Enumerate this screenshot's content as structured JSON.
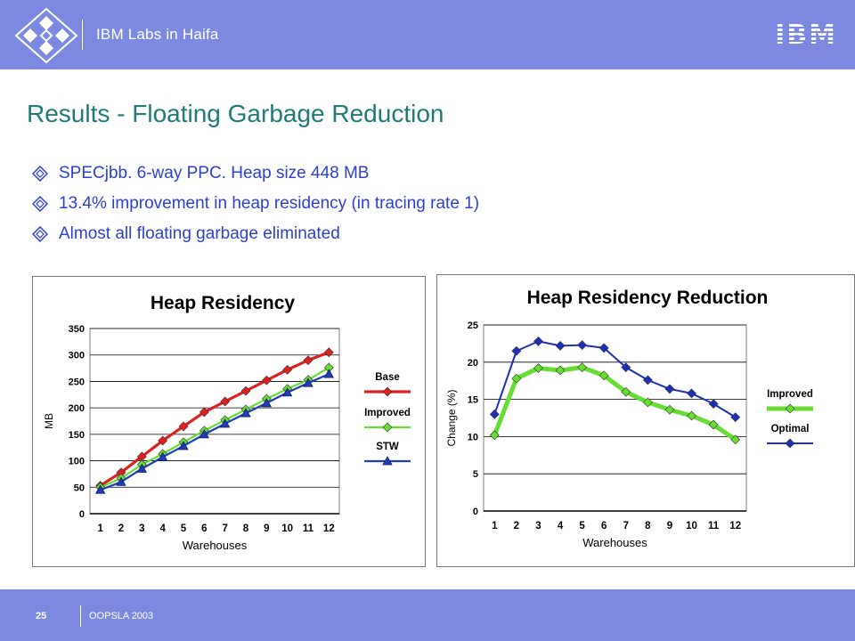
{
  "header": {
    "lab_name": "IBM Labs in Haifa",
    "brand": "IBM",
    "bar_color": "#7b8ae0"
  },
  "slide": {
    "title": "Results - Floating Garbage Reduction",
    "title_color": "#1f7a78",
    "bullets": [
      "SPECjbb. 6-way PPC. Heap size 448 MB",
      "13.4% improvement in heap residency (in tracing rate 1)",
      "Almost all floating garbage eliminated"
    ],
    "bullet_icon": "diamond-bullet-icon",
    "bullet_color": "#2d3fcf"
  },
  "footer": {
    "page_number": "25",
    "conference": "OOPSLA 2003"
  },
  "chart_data": [
    {
      "type": "line",
      "title": "Heap Residency",
      "xlabel": "Warehouses",
      "ylabel": "MB",
      "categories": [
        "1",
        "2",
        "3",
        "4",
        "5",
        "6",
        "7",
        "8",
        "9",
        "10",
        "11",
        "12"
      ],
      "ylim": [
        0,
        350
      ],
      "yticks": [
        "0",
        "50",
        "100",
        "150",
        "200",
        "250",
        "300",
        "350"
      ],
      "grid": true,
      "legend_position": "right",
      "series": [
        {
          "name": "Base",
          "color": "#e02020",
          "marker": "diamond",
          "values": [
            53,
            78,
            108,
            138,
            165,
            192,
            212,
            232,
            252,
            272,
            290,
            305
          ]
        },
        {
          "name": "Improved",
          "color": "#66dd33",
          "marker": "diamond",
          "values": [
            50,
            67,
            93,
            113,
            135,
            157,
            177,
            197,
            217,
            236,
            253,
            276
          ]
        },
        {
          "name": "STW",
          "color": "#1e3db8",
          "marker": "triangle",
          "values": [
            45,
            60,
            85,
            107,
            128,
            150,
            170,
            190,
            209,
            229,
            247,
            264
          ]
        }
      ]
    },
    {
      "type": "line",
      "title": "Heap Residency Reduction",
      "xlabel": "Warehouses",
      "ylabel": "Change (%)",
      "categories": [
        "1",
        "2",
        "3",
        "4",
        "5",
        "6",
        "7",
        "8",
        "9",
        "10",
        "11",
        "12"
      ],
      "ylim": [
        0,
        25
      ],
      "yticks": [
        "0",
        "5",
        "10",
        "15",
        "20",
        "25"
      ],
      "grid": true,
      "legend_position": "right",
      "series": [
        {
          "name": "Improved",
          "color": "#66dd33",
          "marker": "diamond",
          "values": [
            10.2,
            17.8,
            19.2,
            18.9,
            19.3,
            18.2,
            16.0,
            14.6,
            13.6,
            12.8,
            11.6,
            9.6
          ]
        },
        {
          "name": "Optimal",
          "color": "#1e2fb8",
          "marker": "diamond",
          "values": [
            13.0,
            21.5,
            22.8,
            22.2,
            22.3,
            21.9,
            19.3,
            17.6,
            16.4,
            15.8,
            14.4,
            12.6
          ]
        }
      ]
    }
  ]
}
